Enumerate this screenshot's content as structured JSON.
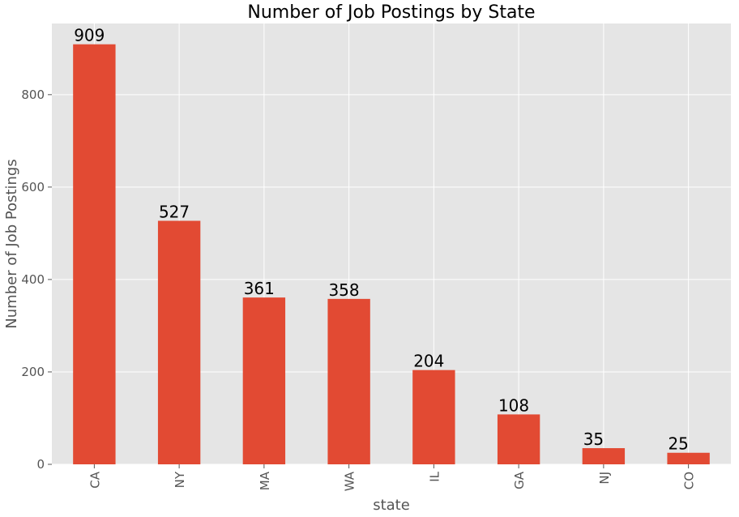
{
  "chart_data": {
    "type": "bar",
    "title": "Number of Job Postings by State",
    "xlabel": "state",
    "ylabel": "Number of Job Postings",
    "categories": [
      "CA",
      "NY",
      "MA",
      "WA",
      "IL",
      "GA",
      "NJ",
      "CO"
    ],
    "values": [
      909,
      527,
      361,
      358,
      204,
      108,
      35,
      25
    ],
    "data_labels": [
      "909",
      "527",
      "361",
      "358",
      "204",
      "108",
      "35",
      "25"
    ],
    "ylim": [
      0,
      954
    ],
    "yticks": [
      0,
      200,
      400,
      600,
      800
    ],
    "ytick_labels": [
      "0",
      "200",
      "400",
      "600",
      "800"
    ],
    "grid": true,
    "legend": "none",
    "colors": {
      "bar": "#E24A33",
      "plot_background": "#E5E5E5",
      "grid": "#FFFFFF",
      "text": "#555555"
    }
  }
}
